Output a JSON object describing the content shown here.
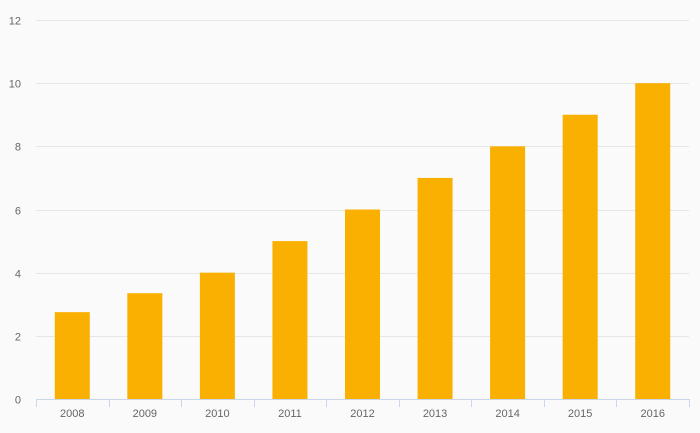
{
  "chart_data": {
    "type": "bar",
    "title": "",
    "xlabel": "",
    "ylabel": "",
    "categories": [
      "2008",
      "2009",
      "2010",
      "2011",
      "2012",
      "2013",
      "2014",
      "2015",
      "2016"
    ],
    "values": [
      2.75,
      3.35,
      4,
      5,
      6,
      7,
      8,
      9,
      10
    ],
    "ylim": [
      0,
      12
    ],
    "yticks": [
      0,
      2,
      4,
      6,
      8,
      10,
      12
    ],
    "grid": true,
    "legend": false,
    "bar_color": "#f9b000"
  }
}
